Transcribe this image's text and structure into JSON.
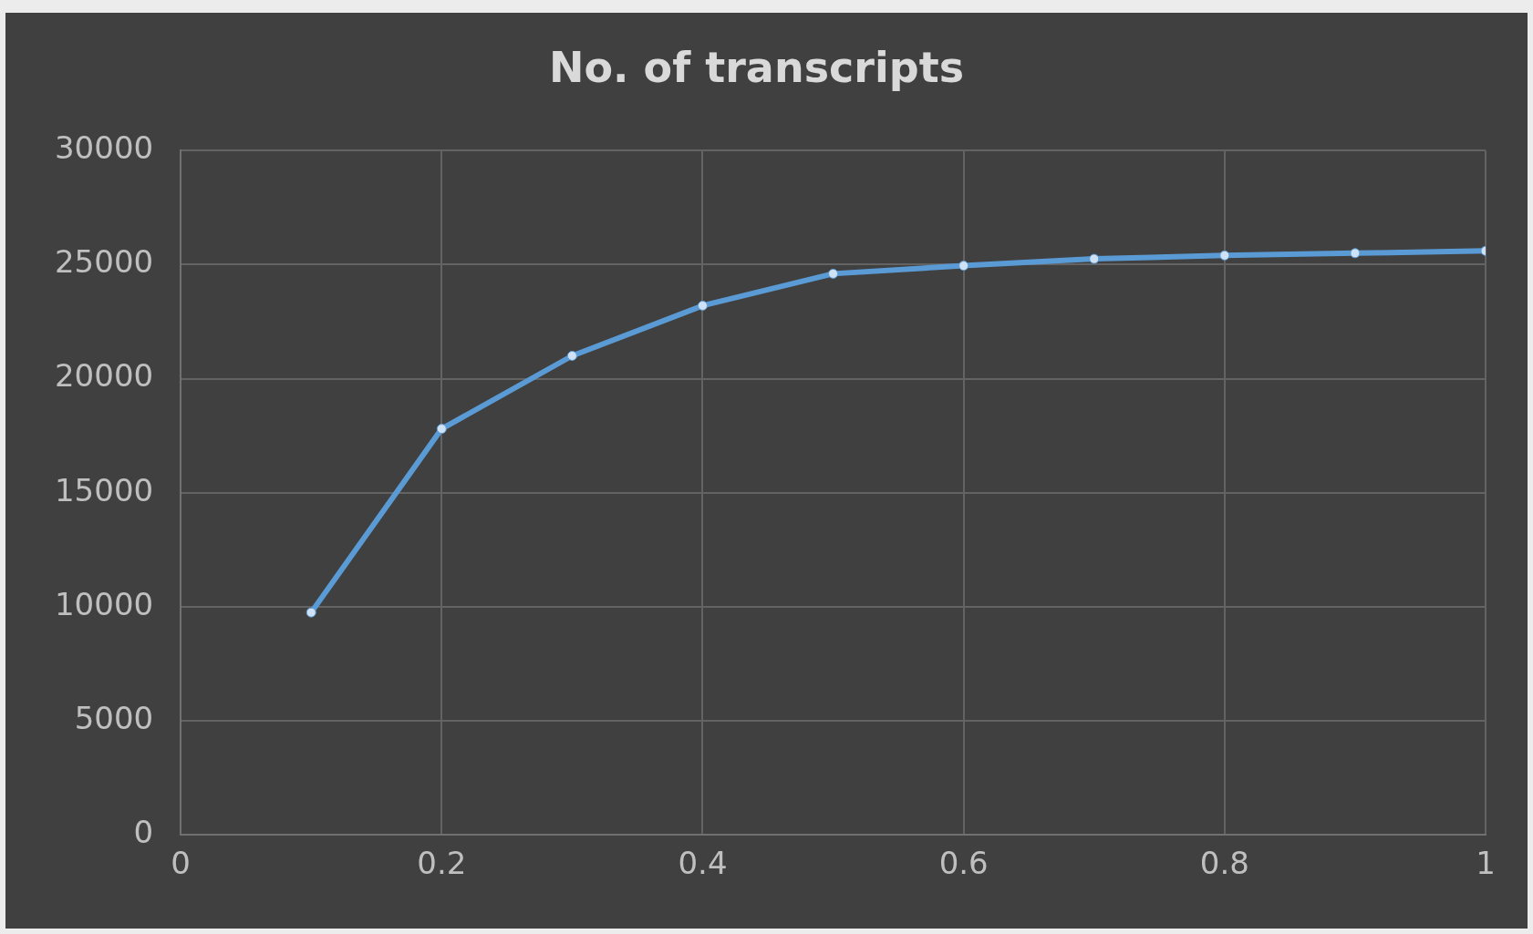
{
  "chart_data": {
    "type": "line",
    "title": "No. of transcripts",
    "x": [
      0.1,
      0.2,
      0.3,
      0.4,
      0.5,
      0.6,
      0.7,
      0.8,
      0.9,
      1
    ],
    "series": [
      {
        "color": "#5b9bd5",
        "values": [
          9750,
          17800,
          21000,
          23200,
          24600,
          24950,
          25250,
          25400,
          25500,
          25600
        ]
      }
    ],
    "xlim": [
      0,
      1
    ],
    "xticks": [
      0,
      0.2,
      0.4,
      0.6,
      0.8,
      1
    ],
    "ylim": [
      0,
      30000
    ],
    "yticks": [
      0,
      5000,
      10000,
      15000,
      20000,
      25000,
      30000
    ],
    "grid": true,
    "legend": false,
    "marker": "circle",
    "line_style": "solid"
  }
}
